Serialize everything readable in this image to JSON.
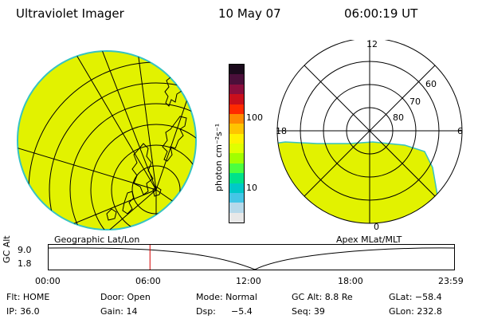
{
  "header": {
    "instrument": "Ultraviolet Imager",
    "date": "10 May 07",
    "time": "06:00:19 UT"
  },
  "colorbar": {
    "label": "photon cm⁻²s⁻¹",
    "tick_high": "100",
    "tick_low": "10",
    "colors": [
      "#1b0a1c",
      "#4b0f3a",
      "#8a0e3d",
      "#c90f1c",
      "#ff2a00",
      "#ff8a00",
      "#ffc400",
      "#fff200",
      "#e0ff00",
      "#a2ff00",
      "#4cff3f",
      "#00e28a",
      "#00c8c8",
      "#44c6e6",
      "#b6d9ea",
      "#e8e8e8"
    ]
  },
  "left_map": {
    "caption": "Geographic Lat/Lon",
    "fill_color": "#e2f200"
  },
  "right_map": {
    "caption": "Apex MLat/MLT",
    "fill_color": "#e2f200",
    "mlt_top": "12",
    "mlt_left": "18",
    "mlt_right": "6",
    "mlt_bottom": "0",
    "lat_60": "60",
    "lat_70": "70",
    "lat_80": "80"
  },
  "altitude_plot": {
    "ylabel": "GC Alt",
    "ytick_top": "9.0",
    "ytick_bottom": "1.8",
    "xticks": [
      "00:00",
      "06:00",
      "12:00",
      "18:00",
      "23:59"
    ],
    "current_time_hours": 6.0
  },
  "status": {
    "flt": "Flt: HOME",
    "door": "Door: Open",
    "mode": "Mode: Normal",
    "gc_alt": "GC Alt: 8.8 Re",
    "glat": "GLat: −58.4",
    "ip": "IP: 36.0",
    "gain": "Gain: 14",
    "dsp_label": "Dsp:",
    "dsp_value": "−5.4",
    "seq": "Seq: 39",
    "glon": "GLon: 232.8"
  }
}
